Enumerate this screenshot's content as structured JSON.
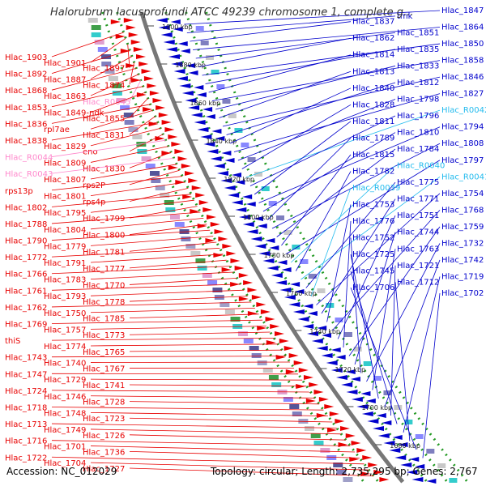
{
  "title": "Halorubrum lacusprofundi ATCC 49239 chromosome 1, complete g...",
  "footer": {
    "accession": "Accession: NC_012029",
    "stats": "Topology: circular; Length: 2,735,295 bp; Genes: 2,767"
  },
  "colors": {
    "forward": "#e80000",
    "reverse": "#0000cc",
    "rna_left": "#ff88cc",
    "rna_right": "#22bbee",
    "backbone": "#777777",
    "ticks": "#229922"
  },
  "ticks": [
    {
      "label": "1900 kbp"
    },
    {
      "label": "1880 kbp"
    },
    {
      "label": "1860 kbp"
    },
    {
      "label": "1840 kbp"
    },
    {
      "label": "1820 kbp"
    },
    {
      "label": "1800 kbp"
    },
    {
      "label": "1780 kbp"
    },
    {
      "label": "1760 kbp"
    },
    {
      "label": "1740 kbp"
    },
    {
      "label": "1720 kbp"
    },
    {
      "label": "1700 kbp"
    },
    {
      "label": "1680 kbp"
    }
  ],
  "left_labels": [
    {
      "text": "Hlac_1903",
      "kind": "gene"
    },
    {
      "text": "Hlac_1901",
      "kind": "gene"
    },
    {
      "text": "Hlac_1897",
      "kind": "gene"
    },
    {
      "text": "Hlac_1892",
      "kind": "gene"
    },
    {
      "text": "Hlac_1887",
      "kind": "gene"
    },
    {
      "text": "Hlac_1874",
      "kind": "gene"
    },
    {
      "text": "Hlac_1868",
      "kind": "gene"
    },
    {
      "text": "Hlac_1863",
      "kind": "gene"
    },
    {
      "text": "Hlac_R0045",
      "kind": "rna"
    },
    {
      "text": "Hlac_1853",
      "kind": "gene"
    },
    {
      "text": "Hlac_1849-ndk",
      "kind": "gene"
    },
    {
      "text": "Hlac_1855",
      "kind": "gene"
    },
    {
      "text": "Hlac_1836",
      "kind": "gene"
    },
    {
      "text": "rpl7ae",
      "kind": "gene"
    },
    {
      "text": "Hlac_1831",
      "kind": "gene"
    },
    {
      "text": "Hlac_1838",
      "kind": "gene"
    },
    {
      "text": "Hlac_1829",
      "kind": "gene"
    },
    {
      "text": "eno",
      "kind": "gene"
    },
    {
      "text": "Hlac_R0044",
      "kind": "rna"
    },
    {
      "text": "Hlac_1809",
      "kind": "gene"
    },
    {
      "text": "Hlac_1830",
      "kind": "gene"
    },
    {
      "text": "Hlac_R0043",
      "kind": "rna"
    },
    {
      "text": "Hlac_1807",
      "kind": "gene"
    },
    {
      "text": "rps2P",
      "kind": "gene"
    },
    {
      "text": "rps13p",
      "kind": "gene"
    },
    {
      "text": "Hlac_1801",
      "kind": "gene"
    },
    {
      "text": "rps4p",
      "kind": "gene"
    },
    {
      "text": "Hlac_1802",
      "kind": "gene"
    },
    {
      "text": "Hlac_1795",
      "kind": "gene"
    },
    {
      "text": "Hlac_1799",
      "kind": "gene"
    },
    {
      "text": "Hlac_1788",
      "kind": "gene"
    },
    {
      "text": "Hlac_1804",
      "kind": "gene"
    },
    {
      "text": "Hlac_1800",
      "kind": "gene"
    },
    {
      "text": "Hlac_1790",
      "kind": "gene"
    },
    {
      "text": "Hlac_1779",
      "kind": "gene"
    },
    {
      "text": "Hlac_1781",
      "kind": "gene"
    },
    {
      "text": "Hlac_1772",
      "kind": "gene"
    },
    {
      "text": "Hlac_1791",
      "kind": "gene"
    },
    {
      "text": "Hlac_1777",
      "kind": "gene"
    },
    {
      "text": "Hlac_1766",
      "kind": "gene"
    },
    {
      "text": "Hlac_1783",
      "kind": "gene"
    },
    {
      "text": "Hlac_1770",
      "kind": "gene"
    },
    {
      "text": "Hlac_1761",
      "kind": "gene"
    },
    {
      "text": "Hlac_1793",
      "kind": "gene"
    },
    {
      "text": "Hlac_1778",
      "kind": "gene"
    },
    {
      "text": "Hlac_1762",
      "kind": "gene"
    },
    {
      "text": "Hlac_1750",
      "kind": "gene"
    },
    {
      "text": "Hlac_1785",
      "kind": "gene"
    },
    {
      "text": "Hlac_1769",
      "kind": "gene"
    },
    {
      "text": "Hlac_1757",
      "kind": "gene"
    },
    {
      "text": "Hlac_1773",
      "kind": "gene"
    },
    {
      "text": "thiS",
      "kind": "gene"
    },
    {
      "text": "Hlac_1774",
      "kind": "gene"
    },
    {
      "text": "Hlac_1765",
      "kind": "gene"
    },
    {
      "text": "Hlac_1743",
      "kind": "gene"
    },
    {
      "text": "Hlac_1740",
      "kind": "gene"
    },
    {
      "text": "Hlac_1767",
      "kind": "gene"
    },
    {
      "text": "Hlac_1747",
      "kind": "gene"
    },
    {
      "text": "Hlac_1729",
      "kind": "gene"
    },
    {
      "text": "Hlac_1741",
      "kind": "gene"
    },
    {
      "text": "Hlac_1724",
      "kind": "gene"
    },
    {
      "text": "Hlac_1746",
      "kind": "gene"
    },
    {
      "text": "Hlac_1728",
      "kind": "gene"
    },
    {
      "text": "Hlac_1718",
      "kind": "gene"
    },
    {
      "text": "Hlac_1748",
      "kind": "gene"
    },
    {
      "text": "Hlac_1723",
      "kind": "gene"
    },
    {
      "text": "Hlac_1713",
      "kind": "gene"
    },
    {
      "text": "Hlac_1749",
      "kind": "gene"
    },
    {
      "text": "Hlac_1726",
      "kind": "gene"
    },
    {
      "text": "Hlac_1716",
      "kind": "gene"
    },
    {
      "text": "Hlac_1701",
      "kind": "gene"
    },
    {
      "text": "Hlac_1736",
      "kind": "gene"
    },
    {
      "text": "Hlac_1722",
      "kind": "gene"
    },
    {
      "text": "Hlac_1704",
      "kind": "gene"
    },
    {
      "text": "Hlac_1727",
      "kind": "gene"
    }
  ],
  "right_labels": [
    {
      "text": "Hlac_1847",
      "kind": "gene"
    },
    {
      "text": "tmk",
      "kind": "gene"
    },
    {
      "text": "Hlac_1837",
      "kind": "gene"
    },
    {
      "text": "Hlac_1864",
      "kind": "gene"
    },
    {
      "text": "Hlac_1851",
      "kind": "gene"
    },
    {
      "text": "Hlac_1862",
      "kind": "gene"
    },
    {
      "text": "Hlac_1850",
      "kind": "gene"
    },
    {
      "text": "Hlac_1835",
      "kind": "gene"
    },
    {
      "text": "Hlac_1814",
      "kind": "gene"
    },
    {
      "text": "Hlac_1858",
      "kind": "gene"
    },
    {
      "text": "Hlac_1833",
      "kind": "gene"
    },
    {
      "text": "Hlac_1813",
      "kind": "gene"
    },
    {
      "text": "Hlac_1846",
      "kind": "gene"
    },
    {
      "text": "Hlac_1812",
      "kind": "gene"
    },
    {
      "text": "Hlac_1840",
      "kind": "gene"
    },
    {
      "text": "Hlac_1827",
      "kind": "gene"
    },
    {
      "text": "Hlac_1798",
      "kind": "gene"
    },
    {
      "text": "Hlac_1828",
      "kind": "gene"
    },
    {
      "text": "Hlac_R0042",
      "kind": "rna"
    },
    {
      "text": "Hlac_1796",
      "kind": "gene"
    },
    {
      "text": "Hlac_1811",
      "kind": "gene"
    },
    {
      "text": "Hlac_1794",
      "kind": "gene"
    },
    {
      "text": "Hlac_1810",
      "kind": "gene"
    },
    {
      "text": "Hlac_1789",
      "kind": "gene"
    },
    {
      "text": "Hlac_1808",
      "kind": "gene"
    },
    {
      "text": "Hlac_1784",
      "kind": "gene"
    },
    {
      "text": "Hlac_1815",
      "kind": "gene"
    },
    {
      "text": "Hlac_1797",
      "kind": "gene"
    },
    {
      "text": "Hlac_R0040",
      "kind": "rna"
    },
    {
      "text": "Hlac_1782",
      "kind": "gene"
    },
    {
      "text": "Hlac_R0041",
      "kind": "rna"
    },
    {
      "text": "Hlac_1775",
      "kind": "gene"
    },
    {
      "text": "Hlac_R0039",
      "kind": "rna"
    },
    {
      "text": "Hlac_1754",
      "kind": "gene"
    },
    {
      "text": "Hlac_1771",
      "kind": "gene"
    },
    {
      "text": "Hlac_1753",
      "kind": "gene"
    },
    {
      "text": "Hlac_1768",
      "kind": "gene"
    },
    {
      "text": "Hlac_1751",
      "kind": "gene"
    },
    {
      "text": "Hlac_1776",
      "kind": "gene"
    },
    {
      "text": "Hlac_1759",
      "kind": "gene"
    },
    {
      "text": "Hlac_1744",
      "kind": "gene"
    },
    {
      "text": "Hlac_1752",
      "kind": "gene"
    },
    {
      "text": "Hlac_1732",
      "kind": "gene"
    },
    {
      "text": "Hlac_1763",
      "kind": "gene"
    },
    {
      "text": "Hlac_1725",
      "kind": "gene"
    },
    {
      "text": "Hlac_1742",
      "kind": "gene"
    },
    {
      "text": "Hlac_1721",
      "kind": "gene"
    },
    {
      "text": "Hlac_1745",
      "kind": "gene"
    },
    {
      "text": "Hlac_1719",
      "kind": "gene"
    },
    {
      "text": "Hlac_1712",
      "kind": "gene"
    },
    {
      "text": "Hlac_1706",
      "kind": "gene"
    },
    {
      "text": "Hlac_1702",
      "kind": "gene"
    }
  ]
}
